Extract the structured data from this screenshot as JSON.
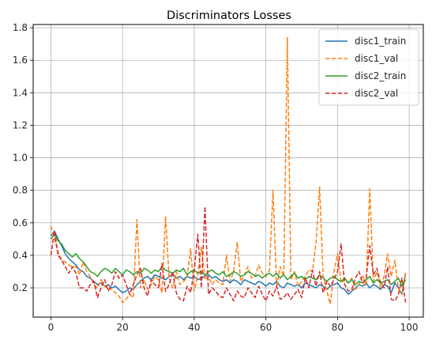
{
  "chart_data": {
    "type": "line",
    "title": "Discriminators Losses",
    "xlabel": "",
    "ylabel": "",
    "xlim": [
      -4.95,
      103.95
    ],
    "ylim": [
      0.02,
      1.82
    ],
    "xticks": [
      0,
      20,
      40,
      60,
      80,
      100
    ],
    "yticks": [
      0.2,
      0.4,
      0.6,
      0.8,
      1.0,
      1.2,
      1.4,
      1.6,
      1.8
    ],
    "xtick_labels": [
      "0",
      "20",
      "40",
      "60",
      "80",
      "100"
    ],
    "ytick_labels": [
      "0.2",
      "0.4",
      "0.6",
      "0.8",
      "1.0",
      "1.2",
      "1.4",
      "1.6",
      "1.8"
    ],
    "grid": true,
    "legend_position": "top-right",
    "series": [
      {
        "name": "disc1_train",
        "color": "#1f77b4",
        "dash": "solid",
        "values": [
          0.52,
          0.55,
          0.5,
          0.46,
          0.41,
          0.38,
          0.36,
          0.34,
          0.31,
          0.3,
          0.27,
          0.26,
          0.24,
          0.22,
          0.23,
          0.21,
          0.22,
          0.2,
          0.21,
          0.19,
          0.17,
          0.18,
          0.2,
          0.19,
          0.22,
          0.24,
          0.26,
          0.27,
          0.25,
          0.28,
          0.27,
          0.26,
          0.25,
          0.27,
          0.28,
          0.26,
          0.27,
          0.25,
          0.27,
          0.26,
          0.27,
          0.25,
          0.26,
          0.27,
          0.28,
          0.26,
          0.27,
          0.25,
          0.24,
          0.25,
          0.23,
          0.25,
          0.24,
          0.22,
          0.25,
          0.24,
          0.23,
          0.22,
          0.24,
          0.23,
          0.21,
          0.23,
          0.22,
          0.24,
          0.21,
          0.2,
          0.23,
          0.22,
          0.21,
          0.22,
          0.2,
          0.23,
          0.22,
          0.21,
          0.2,
          0.22,
          0.21,
          0.19,
          0.21,
          0.22,
          0.23,
          0.2,
          0.19,
          0.16,
          0.18,
          0.2,
          0.22,
          0.21,
          0.23,
          0.2,
          0.22,
          0.21,
          0.19,
          0.22,
          0.21,
          0.17,
          0.23,
          0.2,
          0.16,
          0.29
        ]
      },
      {
        "name": "disc1_val",
        "color": "#ff7f0e",
        "dash": "dashed",
        "values": [
          0.58,
          0.5,
          0.42,
          0.37,
          0.36,
          0.34,
          0.33,
          0.33,
          0.28,
          0.36,
          0.3,
          0.27,
          0.22,
          0.2,
          0.25,
          0.21,
          0.2,
          0.19,
          0.17,
          0.15,
          0.11,
          0.13,
          0.16,
          0.14,
          0.62,
          0.2,
          0.25,
          0.19,
          0.22,
          0.27,
          0.25,
          0.17,
          0.64,
          0.26,
          0.2,
          0.3,
          0.22,
          0.24,
          0.26,
          0.44,
          0.18,
          0.28,
          0.45,
          0.25,
          0.27,
          0.22,
          0.25,
          0.23,
          0.22,
          0.4,
          0.24,
          0.3,
          0.48,
          0.24,
          0.28,
          0.33,
          0.26,
          0.27,
          0.34,
          0.29,
          0.27,
          0.31,
          0.8,
          0.2,
          0.33,
          0.27,
          1.74,
          0.25,
          0.3,
          0.21,
          0.24,
          0.27,
          0.31,
          0.3,
          0.48,
          0.82,
          0.27,
          0.18,
          0.1,
          0.3,
          0.41,
          0.23,
          0.25,
          0.23,
          0.26,
          0.19,
          0.22,
          0.28,
          0.21,
          0.81,
          0.24,
          0.3,
          0.2,
          0.27,
          0.41,
          0.27,
          0.37,
          0.2,
          0.16,
          0.3
        ]
      },
      {
        "name": "disc2_train",
        "color": "#2ca02c",
        "dash": "solid",
        "values": [
          0.5,
          0.53,
          0.49,
          0.47,
          0.43,
          0.41,
          0.39,
          0.41,
          0.38,
          0.36,
          0.33,
          0.3,
          0.29,
          0.27,
          0.3,
          0.32,
          0.31,
          0.29,
          0.32,
          0.3,
          0.28,
          0.31,
          0.3,
          0.28,
          0.3,
          0.29,
          0.32,
          0.31,
          0.29,
          0.31,
          0.3,
          0.33,
          0.31,
          0.3,
          0.29,
          0.31,
          0.3,
          0.32,
          0.28,
          0.3,
          0.31,
          0.29,
          0.3,
          0.28,
          0.3,
          0.31,
          0.29,
          0.28,
          0.3,
          0.27,
          0.28,
          0.3,
          0.29,
          0.27,
          0.28,
          0.3,
          0.29,
          0.27,
          0.28,
          0.26,
          0.28,
          0.29,
          0.27,
          0.29,
          0.26,
          0.28,
          0.25,
          0.27,
          0.29,
          0.26,
          0.27,
          0.25,
          0.27,
          0.26,
          0.25,
          0.28,
          0.26,
          0.24,
          0.26,
          0.27,
          0.25,
          0.24,
          0.26,
          0.23,
          0.25,
          0.22,
          0.24,
          0.23,
          0.25,
          0.27,
          0.23,
          0.25,
          0.23,
          0.24,
          0.25,
          0.22,
          0.24,
          0.26,
          0.21,
          0.25
        ]
      },
      {
        "name": "disc2_val",
        "color": "#d62728",
        "dash": "dashed",
        "values": [
          0.4,
          0.55,
          0.4,
          0.37,
          0.33,
          0.29,
          0.33,
          0.29,
          0.2,
          0.2,
          0.18,
          0.22,
          0.24,
          0.14,
          0.2,
          0.25,
          0.18,
          0.22,
          0.3,
          0.26,
          0.28,
          0.22,
          0.16,
          0.22,
          0.28,
          0.32,
          0.2,
          0.15,
          0.25,
          0.22,
          0.2,
          0.35,
          0.18,
          0.22,
          0.3,
          0.17,
          0.13,
          0.12,
          0.21,
          0.17,
          0.31,
          0.53,
          0.2,
          0.7,
          0.16,
          0.2,
          0.18,
          0.15,
          0.14,
          0.2,
          0.16,
          0.12,
          0.18,
          0.15,
          0.14,
          0.2,
          0.17,
          0.14,
          0.21,
          0.16,
          0.12,
          0.18,
          0.15,
          0.21,
          0.13,
          0.14,
          0.17,
          0.13,
          0.16,
          0.19,
          0.14,
          0.26,
          0.2,
          0.31,
          0.21,
          0.3,
          0.17,
          0.24,
          0.21,
          0.25,
          0.3,
          0.47,
          0.22,
          0.18,
          0.19,
          0.26,
          0.3,
          0.23,
          0.26,
          0.46,
          0.28,
          0.32,
          0.23,
          0.2,
          0.33,
          0.13,
          0.12,
          0.16,
          0.26,
          0.11
        ]
      }
    ]
  }
}
